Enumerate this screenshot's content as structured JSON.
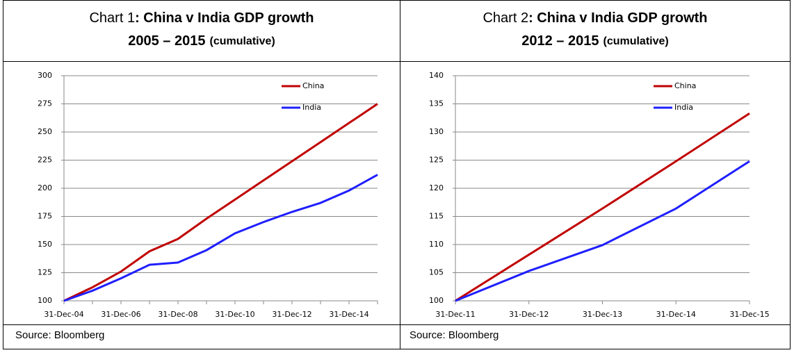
{
  "chart_data": [
    {
      "type": "line",
      "title_prefix": "Chart 1",
      "title": ": China v India GDP growth",
      "subtitle": "2005 – 2015",
      "subtitle_note": "(cumulative)",
      "source": "Source: Bloomberg",
      "categories": [
        "31-Dec-04",
        null,
        "31-Dec-06",
        null,
        "31-Dec-08",
        null,
        "31-Dec-10",
        null,
        "31-Dec-12",
        null,
        "31-Dec-14",
        null
      ],
      "series": [
        {
          "name": "China",
          "color": "#c00000",
          "values": [
            100,
            112,
            126,
            144,
            155,
            173,
            190,
            207,
            224,
            241,
            258,
            275
          ]
        },
        {
          "name": "India",
          "color": "#1f1fff",
          "values": [
            100,
            109,
            120,
            132,
            134,
            145,
            160,
            170,
            179,
            187,
            198,
            212
          ]
        }
      ],
      "ylim": [
        100,
        300
      ],
      "yticks": [
        100,
        125,
        150,
        175,
        200,
        225,
        250,
        275,
        300
      ],
      "grid": true
    },
    {
      "type": "line",
      "title_prefix": "Chart 2",
      "title": ": China v India GDP growth",
      "subtitle": "2012 – 2015",
      "subtitle_note": "(cumulative)",
      "source": "Source: Bloomberg",
      "categories": [
        "31-Dec-11",
        "31-Dec-12",
        "31-Dec-13",
        "31-Dec-14",
        "31-Dec-15"
      ],
      "series": [
        {
          "name": "China",
          "color": "#c00000",
          "values": [
            100,
            108.2,
            116.4,
            124.8,
            133.3
          ]
        },
        {
          "name": "India",
          "color": "#1f1fff",
          "values": [
            100,
            105.3,
            109.9,
            116.4,
            124.8
          ]
        }
      ],
      "ylim": [
        100,
        140
      ],
      "yticks": [
        100,
        105,
        110,
        115,
        120,
        125,
        130,
        135,
        140
      ],
      "grid": true
    }
  ]
}
